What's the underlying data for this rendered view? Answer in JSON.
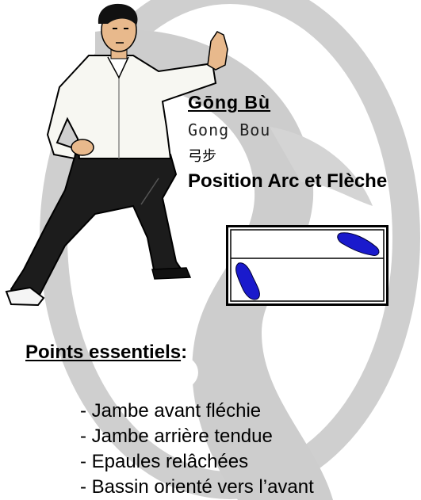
{
  "title": {
    "pinyin": "Gōng  Bù",
    "romanized": "Gong Bou",
    "chinese": "弓步",
    "french": "Position Arc et Flèche"
  },
  "points": {
    "heading": "Points essentiels",
    "colon": ":",
    "items": [
      "- Jambe avant fléchie",
      "- Jambe arrière tendue",
      "- Epaules relâchées",
      "- Bassin orienté vers l’avant"
    ]
  },
  "colors": {
    "emblem": "#c8c8c8",
    "foot": "#1a1acc",
    "shirt": "#f7f7f2",
    "trousers": "#1c1c1c",
    "skin": "#e8b98c"
  }
}
